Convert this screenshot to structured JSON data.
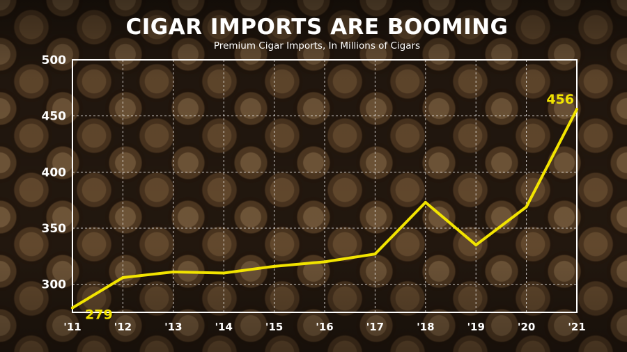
{
  "chart_data": {
    "type": "line",
    "title": "CIGAR IMPORTS ARE BOOMING",
    "subtitle": "Premium Cigar Imports, In Millions of Cigars",
    "x": [
      "'11",
      "'12",
      "'13",
      "'14",
      "'15",
      "'16",
      "'17",
      "'18",
      "'19",
      "'20",
      "'21"
    ],
    "values": [
      279,
      306,
      311,
      310,
      316,
      320,
      327,
      373,
      335,
      369,
      456
    ],
    "ylim": [
      275,
      500
    ],
    "yticks": [
      300,
      350,
      400,
      450,
      500
    ],
    "grid": true,
    "line_color": "#f2e400",
    "label_color": "#f2e400",
    "data_labels": [
      {
        "index": 0,
        "text": "279"
      },
      {
        "index": 10,
        "text": "456"
      }
    ]
  }
}
